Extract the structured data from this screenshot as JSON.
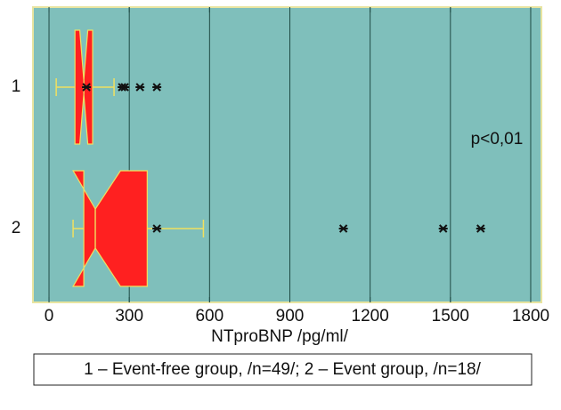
{
  "chart_data": {
    "type": "boxplot",
    "orientation": "horizontal",
    "x_label": "NTproBNP /pg/ml/",
    "annotation": "p<0,01",
    "legend_text": "1 – Event-free group, /n=49/; 2 – Event group, /n=18/",
    "categories": [
      "1",
      "2"
    ],
    "xlim": [
      -60,
      1840
    ],
    "xticks": [
      0,
      300,
      600,
      900,
      1200,
      1500,
      1800
    ],
    "grid": true,
    "background": "#7fbfbb",
    "box_color": "#ff2020",
    "line_color": "#f0e060",
    "boxes": [
      {
        "whisker_low": 27,
        "q1": 97,
        "notch_low": 115,
        "median": 130,
        "notch_high": 145,
        "q3": 163,
        "whisker_high": 243,
        "mean": 140,
        "outliers": [
          273,
          283,
          340,
          403
        ]
      },
      {
        "whisker_low": 90,
        "q1": 130,
        "notch_low": 90,
        "median": 173,
        "notch_high": 267,
        "q3": 367,
        "whisker_high": 577,
        "mean": 403,
        "outliers": [
          1100,
          1473,
          1613
        ]
      }
    ]
  }
}
